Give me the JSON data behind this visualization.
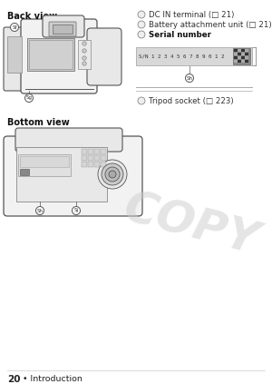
{
  "bg_color": "#ffffff",
  "page_num": "20",
  "page_suffix": " • Introduction",
  "back_view_label": "Back view",
  "bottom_view_label": "Bottom view",
  "copy_text": "COPY",
  "ann1": "DC IN terminal (□ 21)",
  "ann2": "Battery attachment unit (□ 21)",
  "ann3_bold": "Serial number",
  "ann4": "Tripod socket (□ 223)",
  "serial_label": "S/N 1 2 3 4 5 6 7 8 9 0 1 2",
  "font_color": "#222222",
  "label_bold_color": "#111111",
  "annotation_color": "#333333",
  "copy_color": "#cccccc",
  "line_color": "#999999",
  "serial_box_fill": "#d8d8d8",
  "cam_edge": "#555555",
  "cam_fill": "#f2f2f2",
  "cam_fill2": "#e8e8e8",
  "cam_dark": "#cccccc"
}
